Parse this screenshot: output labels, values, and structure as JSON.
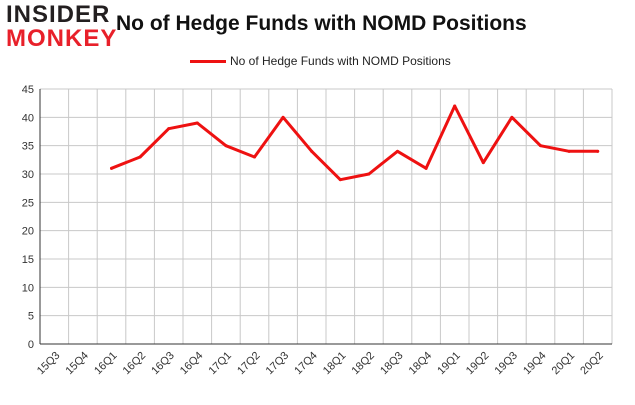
{
  "logo": {
    "line1": "INSIDER",
    "line2": "MONKEY"
  },
  "colors": {
    "series": "#ee1111",
    "grid": "#c8c8c8",
    "axis": "#333333",
    "logo_red": "#e8202a"
  },
  "chart_data": {
    "type": "line",
    "title": "No of Hedge Funds with NOMD Positions",
    "xlabel": "",
    "ylabel": "",
    "ylim": [
      0,
      45
    ],
    "yticks": [
      0,
      5,
      10,
      15,
      20,
      25,
      30,
      35,
      40,
      45
    ],
    "grid": true,
    "legend_position": "top-center",
    "categories": [
      "15Q3",
      "15Q4",
      "16Q1",
      "16Q2",
      "16Q3",
      "16Q4",
      "17Q1",
      "17Q2",
      "17Q3",
      "17Q4",
      "18Q1",
      "18Q2",
      "18Q3",
      "18Q4",
      "19Q1",
      "19Q2",
      "19Q3",
      "19Q4",
      "20Q1",
      "20Q2"
    ],
    "series": [
      {
        "name": "No of Hedge Funds with NOMD Positions",
        "values": [
          null,
          null,
          31,
          33,
          38,
          39,
          35,
          33,
          40,
          34,
          29,
          30,
          34,
          31,
          42,
          32,
          40,
          35,
          34,
          34
        ]
      }
    ]
  }
}
